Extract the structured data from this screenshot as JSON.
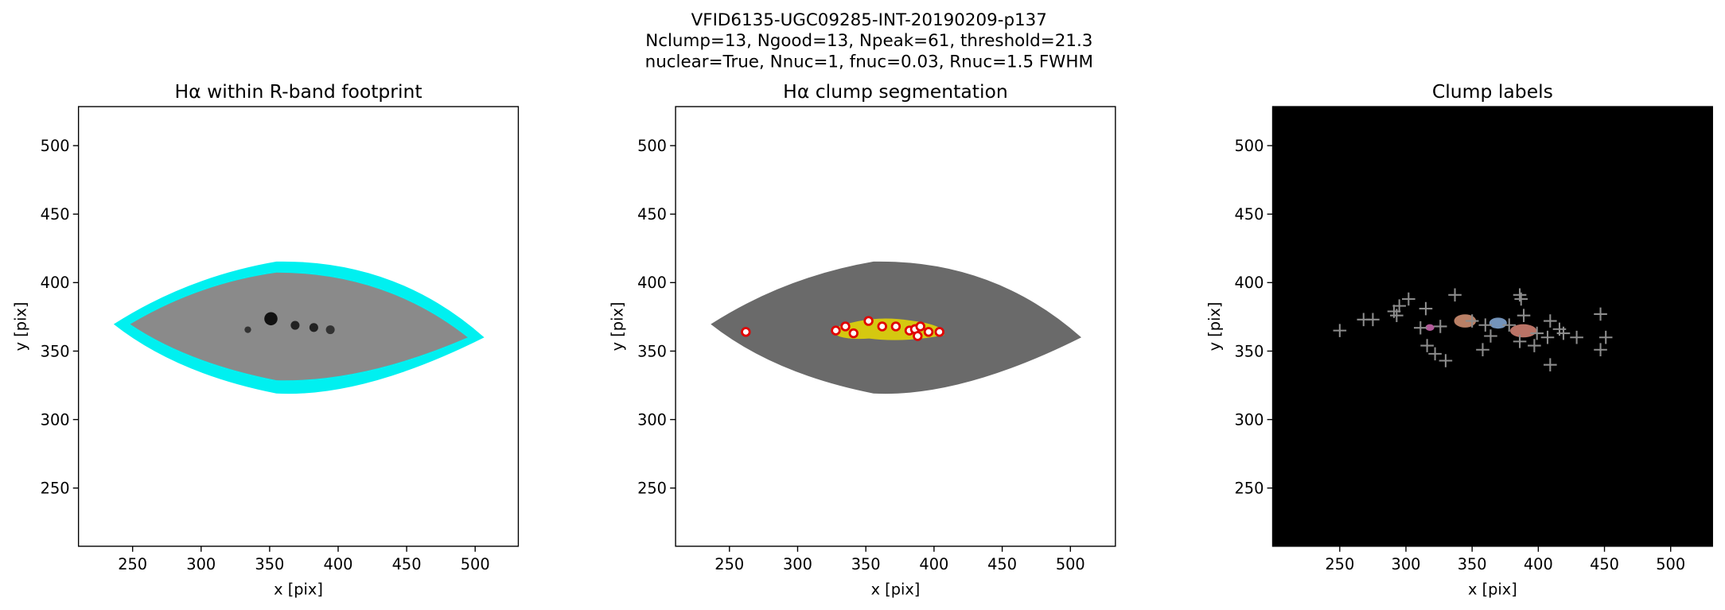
{
  "figure_title": [
    "VFID6135-UGC09285-INT-20190209-p137",
    "Nclump=13, Ngood=13, Npeak=61, threshold=21.3",
    "nuclear=True, Nnuc=1, fnuc=0.03, Rnuc=1.5 FWHM"
  ],
  "chart_data": [
    {
      "type": "image",
      "title": "Hα within R-band footprint",
      "xlabel": "x [pix]",
      "ylabel": "y [pix]",
      "xlim": [
        210.5,
        531.5
      ],
      "ylim": [
        207.5,
        528.5
      ],
      "xticks": [
        250,
        300,
        350,
        400,
        450,
        500
      ],
      "yticks": [
        250,
        300,
        350,
        400,
        450,
        500
      ],
      "background": "#ffffff"
    },
    {
      "type": "scatter",
      "title": "Hα clump segmentation",
      "xlabel": "x [pix]",
      "ylabel": "y [pix]",
      "xlim": [
        210.5,
        533
      ],
      "ylim": [
        207.5,
        528.5
      ],
      "xticks": [
        250,
        300,
        350,
        400,
        450,
        500
      ],
      "yticks": [
        250,
        300,
        350,
        400,
        450,
        500
      ],
      "background": "#ffffff",
      "marker": "o",
      "color": "#e00000",
      "x": [
        262,
        328,
        335,
        341,
        352,
        362,
        372,
        382,
        386,
        388,
        390,
        396,
        404
      ],
      "y": [
        364,
        365,
        368,
        363,
        372,
        368,
        368,
        365,
        366,
        361,
        368,
        364,
        364
      ]
    },
    {
      "type": "scatter",
      "title": "Clump labels",
      "xlabel": "x [pix]",
      "ylabel": "y [pix]",
      "xlim": [
        199.3,
        531.6
      ],
      "ylim": [
        207.5,
        528.5
      ],
      "xticks": [
        250,
        300,
        350,
        400,
        450,
        500
      ],
      "yticks": [
        250,
        300,
        350,
        400,
        450,
        500
      ],
      "background": "#000000",
      "marker": "+",
      "color": "#8c8c8c",
      "x": [
        250,
        268,
        275,
        291,
        295,
        302,
        293,
        315,
        311,
        316,
        322,
        330,
        326,
        337,
        350,
        360,
        364,
        378,
        386,
        387,
        389,
        386,
        397,
        399,
        407,
        409,
        416,
        419,
        429,
        409,
        447,
        451,
        447,
        358
      ],
      "y": [
        365,
        373,
        373,
        379,
        383,
        388,
        376,
        381,
        367,
        354,
        348,
        343,
        368,
        391,
        372,
        369,
        361,
        369,
        391,
        388,
        376,
        357,
        354,
        363,
        360,
        372,
        366,
        363,
        360,
        340,
        377,
        360,
        351,
        351
      ]
    }
  ]
}
